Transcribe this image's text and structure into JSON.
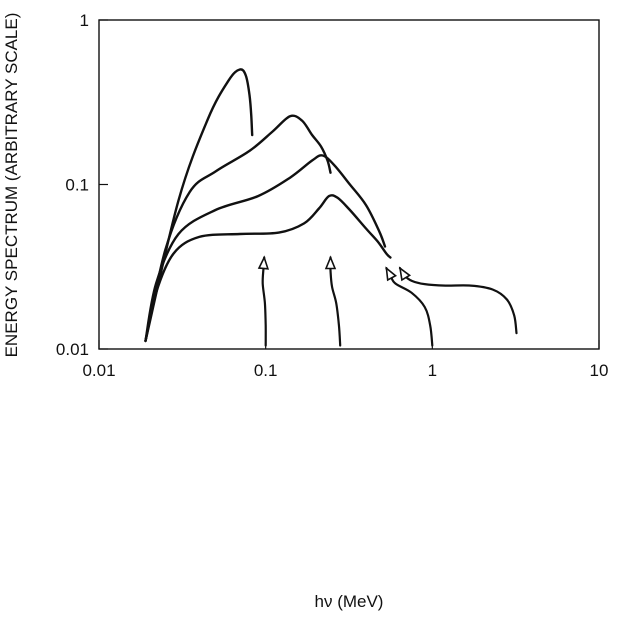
{
  "chart_data": {
    "type": "line",
    "title": "",
    "xlabel": "hν (MeV)",
    "ylabel": "ENERGY SPECTRUM (ARBITRARY SCALE)",
    "xscale": "log",
    "yscale": "log",
    "xlim": [
      0.01,
      10
    ],
    "ylim": [
      0.01,
      1
    ],
    "xticks": [
      {
        "value": 0.01,
        "label": "0.01"
      },
      {
        "value": 0.1,
        "label": "0.1"
      },
      {
        "value": 1,
        "label": "1"
      },
      {
        "value": 10,
        "label": "10"
      }
    ],
    "yticks": [
      {
        "value": 0.01,
        "label": "0.01"
      },
      {
        "value": 0.1,
        "label": "0.1"
      },
      {
        "value": 1,
        "label": "1"
      }
    ],
    "grid": false,
    "legend": "none",
    "series": [
      {
        "x": [
          0.019,
          0.03,
          0.045,
          0.06,
          0.07,
          0.076,
          0.08,
          0.082,
          0.083
        ],
        "y": [
          0.0112,
          0.08,
          0.25,
          0.43,
          0.5,
          0.46,
          0.35,
          0.26,
          0.2
        ],
        "arrow": {
          "x": [
            0.1,
            0.1,
            0.099,
            0.096,
            0.097,
            0.098
          ],
          "y": [
            0.0105,
            0.014,
            0.019,
            0.025,
            0.031,
            0.036
          ]
        }
      },
      {
        "x": [
          0.019,
          0.025,
          0.035,
          0.05,
          0.08,
          0.11,
          0.14,
          0.165,
          0.19,
          0.215,
          0.235,
          0.245
        ],
        "y": [
          0.0112,
          0.04,
          0.09,
          0.12,
          0.16,
          0.21,
          0.26,
          0.245,
          0.2,
          0.17,
          0.14,
          0.118
        ],
        "arrow": {
          "x": [
            0.28,
            0.275,
            0.265,
            0.25,
            0.245,
            0.245
          ],
          "y": [
            0.0105,
            0.014,
            0.019,
            0.024,
            0.03,
            0.036
          ]
        }
      },
      {
        "x": [
          0.019,
          0.022,
          0.03,
          0.05,
          0.09,
          0.14,
          0.19,
          0.22,
          0.26,
          0.32,
          0.4,
          0.48,
          0.52
        ],
        "y": [
          0.0112,
          0.025,
          0.05,
          0.07,
          0.085,
          0.11,
          0.14,
          0.15,
          0.13,
          0.1,
          0.075,
          0.052,
          0.042
        ],
        "arrow": {
          "x": [
            1,
            0.97,
            0.9,
            0.75,
            0.6,
            0.56,
            0.53
          ],
          "y": [
            0.0105,
            0.014,
            0.018,
            0.022,
            0.025,
            0.028,
            0.031
          ]
        }
      },
      {
        "x": [
          0.019,
          0.022,
          0.028,
          0.04,
          0.07,
          0.12,
          0.17,
          0.21,
          0.24,
          0.27,
          0.32,
          0.4,
          0.47,
          0.53,
          0.56
        ],
        "y": [
          0.0112,
          0.022,
          0.038,
          0.048,
          0.05,
          0.051,
          0.058,
          0.072,
          0.085,
          0.083,
          0.07,
          0.054,
          0.045,
          0.038,
          0.036
        ],
        "arrow": {
          "x": [
            3.2,
            3.1,
            2.8,
            2.3,
            1.7,
            1.2,
            0.9,
            0.75,
            0.68,
            0.64
          ],
          "y": [
            0.0125,
            0.016,
            0.02,
            0.023,
            0.0243,
            0.0243,
            0.0248,
            0.026,
            0.028,
            0.031
          ]
        }
      }
    ]
  }
}
